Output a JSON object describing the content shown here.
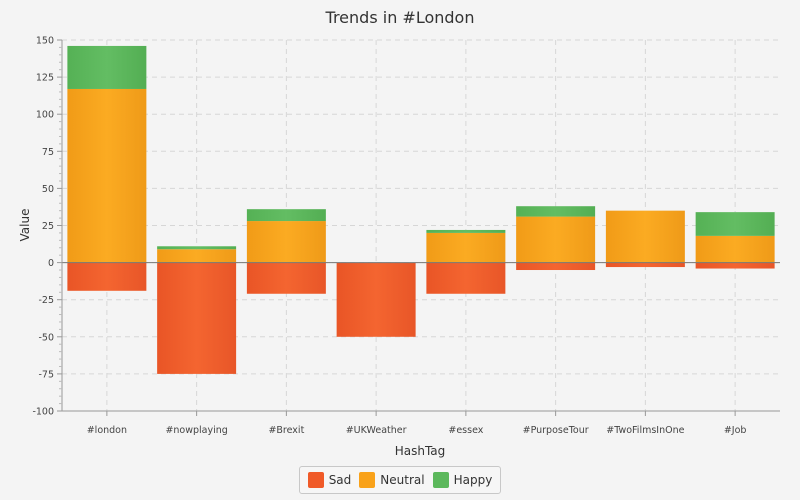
{
  "chart_data": {
    "type": "bar",
    "stacked": true,
    "title": "Trends in #London",
    "xlabel": "HashTag",
    "ylabel": "Value",
    "ylim": [
      -100,
      150
    ],
    "yticks": [
      -100,
      -75,
      -50,
      -25,
      0,
      25,
      50,
      75,
      100,
      125,
      150
    ],
    "grid": true,
    "legend_position": "bottom",
    "categories": [
      "#london",
      "#nowplaying",
      "#Brexit",
      "#UKWeather",
      "#essex",
      "#PurposeTour",
      "#TwoFilmsInOne",
      "#Job"
    ],
    "series": [
      {
        "name": "Sad",
        "color": "#f05a28",
        "values": [
          -19,
          -75,
          -21,
          -50,
          -21,
          -5,
          -3,
          -4
        ]
      },
      {
        "name": "Neutral",
        "color": "#f9a21a",
        "values": [
          117,
          9,
          28,
          0,
          20,
          31,
          35,
          18
        ]
      },
      {
        "name": "Happy",
        "color": "#5cb85c",
        "values": [
          29,
          2,
          8,
          0,
          2,
          7,
          0,
          16
        ]
      }
    ]
  }
}
